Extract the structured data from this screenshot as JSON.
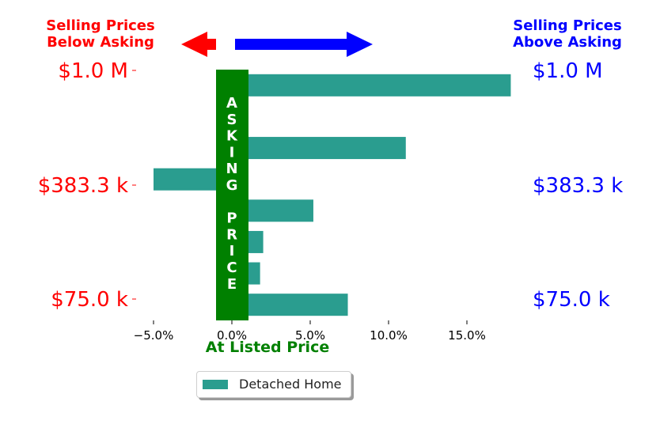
{
  "chart_data": {
    "type": "bar",
    "orientation": "horizontal",
    "series": [
      {
        "name": "Detached Home",
        "values": [
          17.8,
          0.2,
          11.1,
          -5.0,
          5.2,
          2.0,
          1.8,
          7.4
        ]
      }
    ],
    "xlim": [
      -6.0,
      18.5
    ],
    "xticks": [
      -5.0,
      0.0,
      5.0,
      10.0,
      15.0
    ],
    "xtick_labels": [
      "−5.0%",
      "0.0%",
      "5.0%",
      "10.0%",
      "15.0%"
    ],
    "xlabel": "At Listed Price",
    "price_labels": [
      "$1.0 M",
      "$383.3 k",
      "$75.0 k"
    ],
    "asking_band_text": "ASKING PRICE",
    "left_header": "Selling Prices\nBelow Asking",
    "right_header": "Selling Prices\nAbove Asking",
    "legend_placement": "bottom-center",
    "grid": false,
    "colors": {
      "bar": "#2a9d8f",
      "band": "#008000",
      "left": "#ff0000",
      "right": "#0000ff",
      "xlabel": "#008000"
    }
  }
}
